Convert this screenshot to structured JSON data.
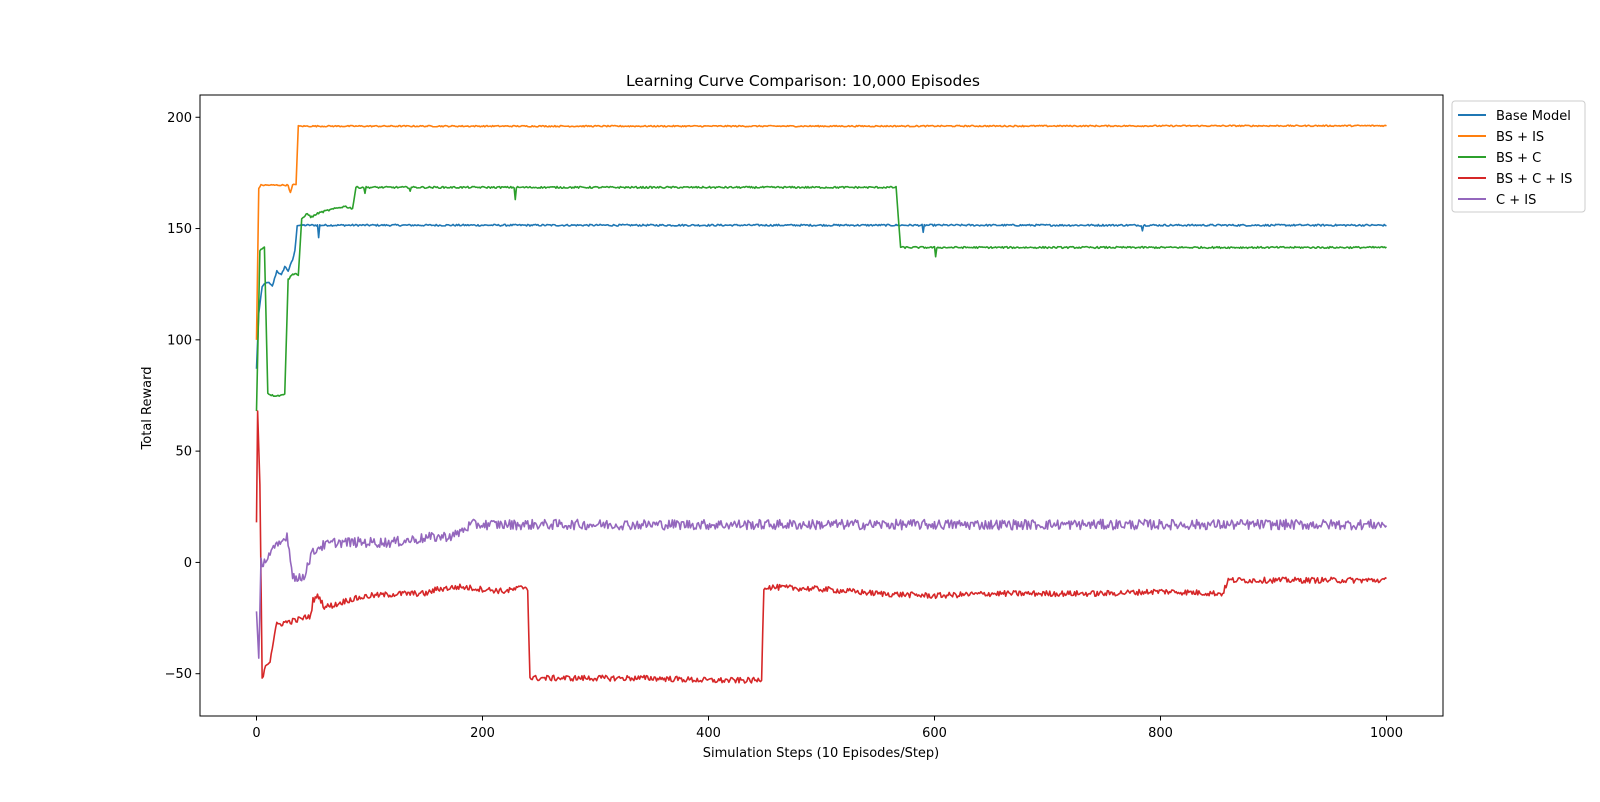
{
  "chart_data": {
    "type": "line",
    "title": "Learning Curve Comparison: 10,000 Episodes",
    "xlabel": "Simulation Steps (10 Episodes/Step)",
    "ylabel": "Total Reward",
    "xlim": [
      -50,
      1050
    ],
    "ylim": [
      -69,
      210
    ],
    "xticks": [
      0,
      200,
      400,
      600,
      800,
      1000
    ],
    "yticks": [
      -50,
      0,
      50,
      100,
      150,
      200
    ],
    "tick_labels_x": [
      "0",
      "200",
      "400",
      "600",
      "800",
      "1000"
    ],
    "tick_labels_y": [
      "−50",
      "0",
      "50",
      "100",
      "150",
      "200"
    ],
    "grid": false,
    "legend_position": "outside-top-right",
    "series": [
      {
        "name": "Base Model",
        "color": "#1f77b4",
        "noise": 0.4,
        "points": [
          [
            0,
            87
          ],
          [
            2,
            112
          ],
          [
            5,
            124
          ],
          [
            10,
            126
          ],
          [
            14,
            124
          ],
          [
            18,
            131
          ],
          [
            22,
            129
          ],
          [
            25,
            133
          ],
          [
            28,
            131
          ],
          [
            32,
            136
          ],
          [
            34,
            140
          ],
          [
            36,
            151.5
          ],
          [
            54,
            151.5
          ],
          [
            55,
            146
          ],
          [
            56,
            151.5
          ],
          [
            589,
            151.5
          ],
          [
            590,
            148
          ],
          [
            591,
            151.5
          ],
          [
            783,
            151.5
          ],
          [
            784,
            149
          ],
          [
            785,
            151.5
          ],
          [
            800,
            151.5
          ],
          [
            1000,
            151.5
          ]
        ]
      },
      {
        "name": "BS + IS",
        "color": "#ff7f0e",
        "noise": 0.3,
        "points": [
          [
            0,
            100
          ],
          [
            2,
            168
          ],
          [
            4,
            169.5
          ],
          [
            28,
            169.5
          ],
          [
            30,
            166
          ],
          [
            32,
            169.5
          ],
          [
            35,
            170
          ],
          [
            37,
            196
          ],
          [
            500,
            196
          ],
          [
            1000,
            196.2
          ]
        ]
      },
      {
        "name": "BS + C",
        "color": "#2ca02c",
        "noise": 0.4,
        "points": [
          [
            0,
            68
          ],
          [
            3,
            140
          ],
          [
            7,
            142
          ],
          [
            10,
            76
          ],
          [
            14,
            75
          ],
          [
            22,
            75
          ],
          [
            25,
            76
          ],
          [
            28,
            127
          ],
          [
            31,
            129
          ],
          [
            34,
            130
          ],
          [
            37,
            129
          ],
          [
            40,
            154
          ],
          [
            45,
            157
          ],
          [
            48,
            155
          ],
          [
            55,
            157
          ],
          [
            62,
            158
          ],
          [
            70,
            159
          ],
          [
            78,
            160
          ],
          [
            85,
            159
          ],
          [
            88,
            168.5
          ],
          [
            95,
            168.5
          ],
          [
            96,
            166
          ],
          [
            97,
            168.5
          ],
          [
            135,
            168.5
          ],
          [
            136,
            167
          ],
          [
            137,
            168.5
          ],
          [
            228,
            168.5
          ],
          [
            229,
            163
          ],
          [
            230,
            168.5
          ],
          [
            566,
            168.5
          ],
          [
            570,
            141.5
          ],
          [
            600,
            141.5
          ],
          [
            601,
            137
          ],
          [
            602,
            141.5
          ],
          [
            1000,
            141.5
          ]
        ]
      },
      {
        "name": "BS + C + IS",
        "color": "#d62728",
        "noise": 1.3,
        "points": [
          [
            0,
            18
          ],
          [
            1,
            68
          ],
          [
            3,
            35
          ],
          [
            5,
            -52
          ],
          [
            8,
            -46
          ],
          [
            12,
            -44
          ],
          [
            15,
            -35
          ],
          [
            18,
            -28
          ],
          [
            25,
            -27
          ],
          [
            35,
            -26
          ],
          [
            48,
            -24
          ],
          [
            50,
            -17
          ],
          [
            55,
            -15
          ],
          [
            60,
            -20
          ],
          [
            70,
            -19
          ],
          [
            80,
            -17
          ],
          [
            100,
            -15
          ],
          [
            130,
            -14
          ],
          [
            150,
            -14
          ],
          [
            160,
            -12
          ],
          [
            180,
            -11
          ],
          [
            200,
            -12
          ],
          [
            220,
            -13
          ],
          [
            238,
            -11
          ],
          [
            240,
            -12
          ],
          [
            242,
            -52
          ],
          [
            300,
            -52
          ],
          [
            350,
            -52
          ],
          [
            400,
            -53
          ],
          [
            445,
            -53
          ],
          [
            447,
            -52
          ],
          [
            449,
            -11
          ],
          [
            500,
            -12
          ],
          [
            550,
            -14
          ],
          [
            600,
            -15
          ],
          [
            650,
            -14
          ],
          [
            700,
            -14
          ],
          [
            750,
            -14
          ],
          [
            800,
            -13
          ],
          [
            855,
            -14
          ],
          [
            860,
            -8
          ],
          [
            900,
            -8
          ],
          [
            950,
            -8
          ],
          [
            1000,
            -8
          ]
        ]
      },
      {
        "name": "C + IS",
        "color": "#9467bd",
        "noise": 2.3,
        "points": [
          [
            0,
            -22
          ],
          [
            2,
            -43
          ],
          [
            4,
            0
          ],
          [
            8,
            1
          ],
          [
            12,
            4
          ],
          [
            16,
            6
          ],
          [
            20,
            8
          ],
          [
            24,
            10
          ],
          [
            27,
            13
          ],
          [
            29,
            5
          ],
          [
            32,
            -5
          ],
          [
            36,
            -8
          ],
          [
            42,
            -6
          ],
          [
            48,
            3
          ],
          [
            55,
            7
          ],
          [
            70,
            9
          ],
          [
            90,
            9
          ],
          [
            120,
            9
          ],
          [
            150,
            11
          ],
          [
            175,
            12
          ],
          [
            190,
            17
          ],
          [
            210,
            17
          ],
          [
            300,
            17
          ],
          [
            400,
            17
          ],
          [
            500,
            17
          ],
          [
            600,
            17
          ],
          [
            700,
            17
          ],
          [
            800,
            17
          ],
          [
            900,
            17
          ],
          [
            1000,
            17
          ]
        ]
      }
    ]
  }
}
